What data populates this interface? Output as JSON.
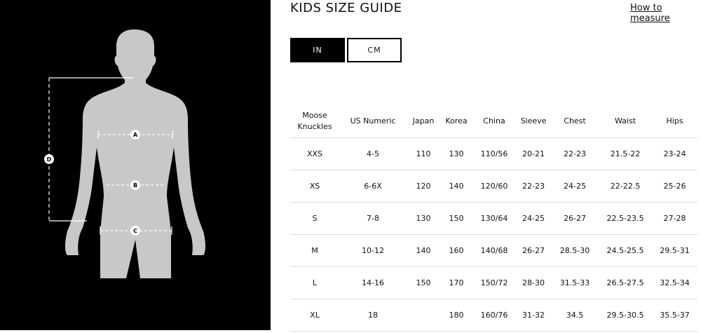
{
  "title": "KIDS SIZE GUIDE",
  "how_to_measure": "How to measure",
  "units": {
    "options": [
      "IN",
      "CM"
    ],
    "selected": "IN"
  },
  "figure": {
    "labels": [
      "A",
      "B",
      "C",
      "D"
    ],
    "silhouette_color": "#c8c8c8"
  },
  "table": {
    "headers": [
      "Moose Knuckles",
      "US Numeric",
      "Japan",
      "Korea",
      "China",
      "Sleeve",
      "Chest",
      "Waist",
      "Hips"
    ],
    "rows": [
      [
        "XXS",
        "4-5",
        "110",
        "130",
        "110/56",
        "20-21",
        "22-23",
        "21.5-22",
        "23-24"
      ],
      [
        "XS",
        "6-6X",
        "120",
        "140",
        "120/60",
        "22-23",
        "24-25",
        "22-22.5",
        "25-26"
      ],
      [
        "S",
        "7-8",
        "130",
        "150",
        "130/64",
        "24-25",
        "26-27",
        "22.5-23.5",
        "27-28"
      ],
      [
        "M",
        "10-12",
        "140",
        "160",
        "140/68",
        "26-27",
        "28.5-30",
        "24.5-25.5",
        "29.5-31"
      ],
      [
        "L",
        "14-16",
        "150",
        "170",
        "150/72",
        "28-30",
        "31.5-33",
        "26.5-27.5",
        "32.5-34"
      ],
      [
        "XL",
        "18",
        "",
        "180",
        "160/76",
        "31-32",
        "34.5",
        "29.5-30.5",
        "35.5-37"
      ]
    ]
  }
}
